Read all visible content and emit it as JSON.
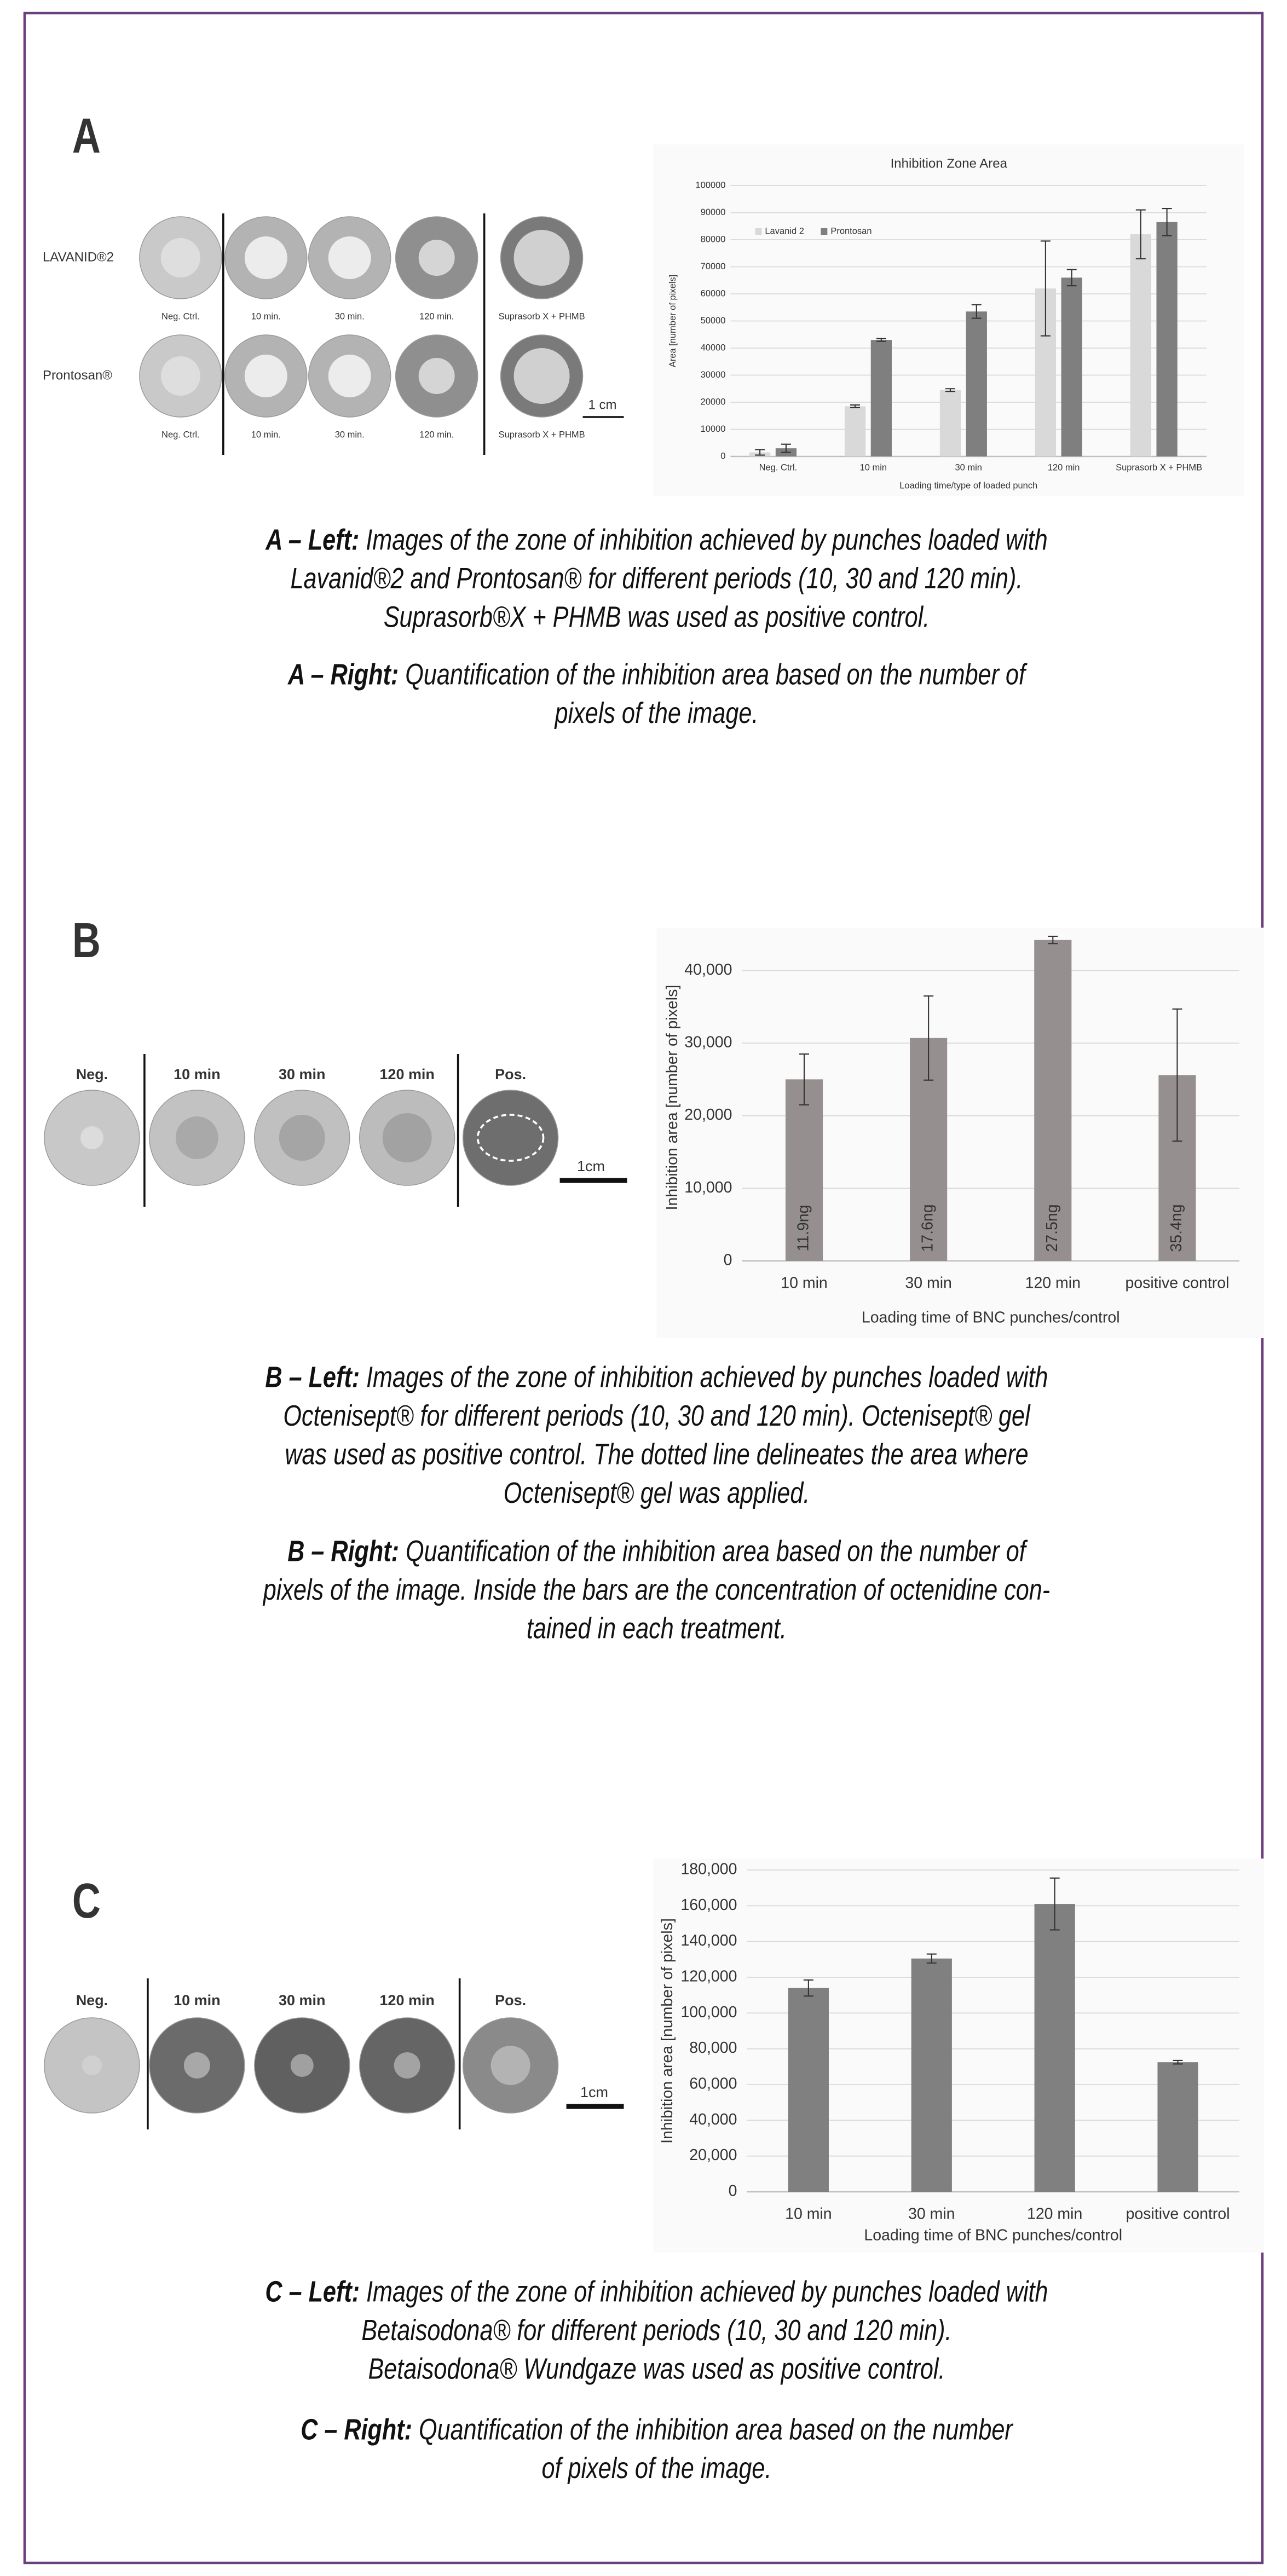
{
  "chart_data": [
    {
      "type": "bar",
      "title": "Inhibition Zone Area",
      "y_label": "Area [number of pixels]",
      "x_label": "Loading time/type of loaded punch",
      "categories": [
        "Neg. Ctrl.",
        "10 min",
        "30 min",
        "120 min",
        "Suprasorb X + PHMB"
      ],
      "series": [
        {
          "name": "Lavanid 2",
          "color": "#d9d9d9",
          "values": [
            1500,
            18500,
            24500,
            62000,
            82000
          ],
          "errors": [
            1000,
            500,
            500,
            17500,
            9000
          ]
        },
        {
          "name": "Prontosan",
          "color": "#7f7f7f",
          "values": [
            3000,
            43000,
            53500,
            66000,
            86500
          ],
          "errors": [
            1500,
            500,
            2500,
            3000,
            5000
          ]
        }
      ],
      "ylim": [
        0,
        100000
      ],
      "yticks": [
        0,
        10000,
        20000,
        30000,
        40000,
        50000,
        60000,
        70000,
        80000,
        90000,
        100000
      ],
      "grid": true,
      "legend": "top-left"
    },
    {
      "type": "bar",
      "y_label": "Inhibition area [number of pixels]",
      "x_label": "Loading time of BNC punches/control",
      "categories": [
        "10 min",
        "30 min",
        "120 min",
        "positive control"
      ],
      "values": [
        25000,
        30700,
        44200,
        25600
      ],
      "errors": [
        3500,
        5800,
        500,
        9100
      ],
      "bar_texts": [
        "11.9ng",
        "17.6ng",
        "27.5ng",
        "35.4ng"
      ],
      "color": "#958f8f",
      "ylim": [
        0,
        45000
      ],
      "yticks": [
        0,
        {
          "value": 10000,
          "label": "10,000"
        },
        {
          "value": 20000,
          "label": "20,000"
        },
        {
          "value": 30000,
          "label": "30,000"
        },
        {
          "value": 40000,
          "label": "40,000"
        }
      ],
      "grid": true
    },
    {
      "type": "bar",
      "y_label": "Inhibition area [number of pixels]",
      "x_label": "Loading time of BNC punches/control",
      "categories": [
        "10 min",
        "30 min",
        "120 min",
        "positive control"
      ],
      "values": [
        114000,
        130500,
        161000,
        72500
      ],
      "errors": [
        4500,
        2500,
        14500,
        1000
      ],
      "color": "#808080",
      "ylim": [
        0,
        180000
      ],
      "yticks": [
        0,
        {
          "value": 20000,
          "label": "20,000"
        },
        {
          "value": 40000,
          "label": "40,000"
        },
        {
          "value": 60000,
          "label": "60,000"
        },
        {
          "value": 80000,
          "label": "80,000"
        },
        {
          "value": 100000,
          "label": "100,000"
        },
        {
          "value": 120000,
          "label": "120,000"
        },
        {
          "value": 140000,
          "label": "140,000"
        },
        {
          "value": 160000,
          "label": "160,000"
        },
        {
          "value": 180000,
          "label": "180,000"
        }
      ],
      "grid": true
    }
  ],
  "panels": [
    {
      "letter": "A",
      "row_labels": [
        "LAVANID®2",
        "Prontosan®"
      ],
      "photo_labels": [
        "Neg. Ctrl.",
        "10 min.",
        "30 min.",
        "120 min.",
        "Suprasorb X + PHMB"
      ],
      "scale_label": "1 cm",
      "captions": [
        {
          "lead": "A – Left:",
          "lines": [
            "Images of the zone of inhibition achieved by punches loaded with",
            "Lavanid®2 and Prontosan® for different periods (10, 30 and 120 min).",
            "Suprasorb®X + PHMB was used as positive control."
          ]
        },
        {
          "lead": "A – Right:",
          "lines": [
            "Quantification of the inhibition area based on the number of",
            "pixels of the image."
          ]
        }
      ]
    },
    {
      "letter": "B",
      "photo_labels": [
        "Neg.",
        "10 min",
        "30 min",
        "120 min",
        "Pos."
      ],
      "scale_label": "1cm",
      "captions": [
        {
          "lead": "B – Left:",
          "lines": [
            "Images of the zone of inhibition achieved by punches loaded with",
            "Octenisept® for different periods (10, 30 and 120 min). Octenisept® gel",
            "was used as positive control. The dotted line delineates the area where",
            "Octenisept® gel was applied."
          ]
        },
        {
          "lead": "B – Right:",
          "lines": [
            "Quantification of the inhibition area based on the number of",
            "pixels of the image. Inside the bars are the concentration of octenidine con-",
            "tained in each treatment."
          ]
        }
      ]
    },
    {
      "letter": "C",
      "photo_labels": [
        "Neg.",
        "10 min",
        "30 min",
        "120 min",
        "Pos."
      ],
      "scale_label": "1cm",
      "captions": [
        {
          "lead": "C – Left:",
          "lines": [
            "Images of the zone of inhibition achieved by punches loaded with",
            "Betaisodona® for different periods (10, 30 and 120 min).",
            "Betaisodona® Wundgaze was used as positive control."
          ]
        },
        {
          "lead": "C – Right:",
          "lines": [
            "Quantification of the inhibition area based on the number",
            "of pixels of the image."
          ]
        }
      ]
    }
  ]
}
